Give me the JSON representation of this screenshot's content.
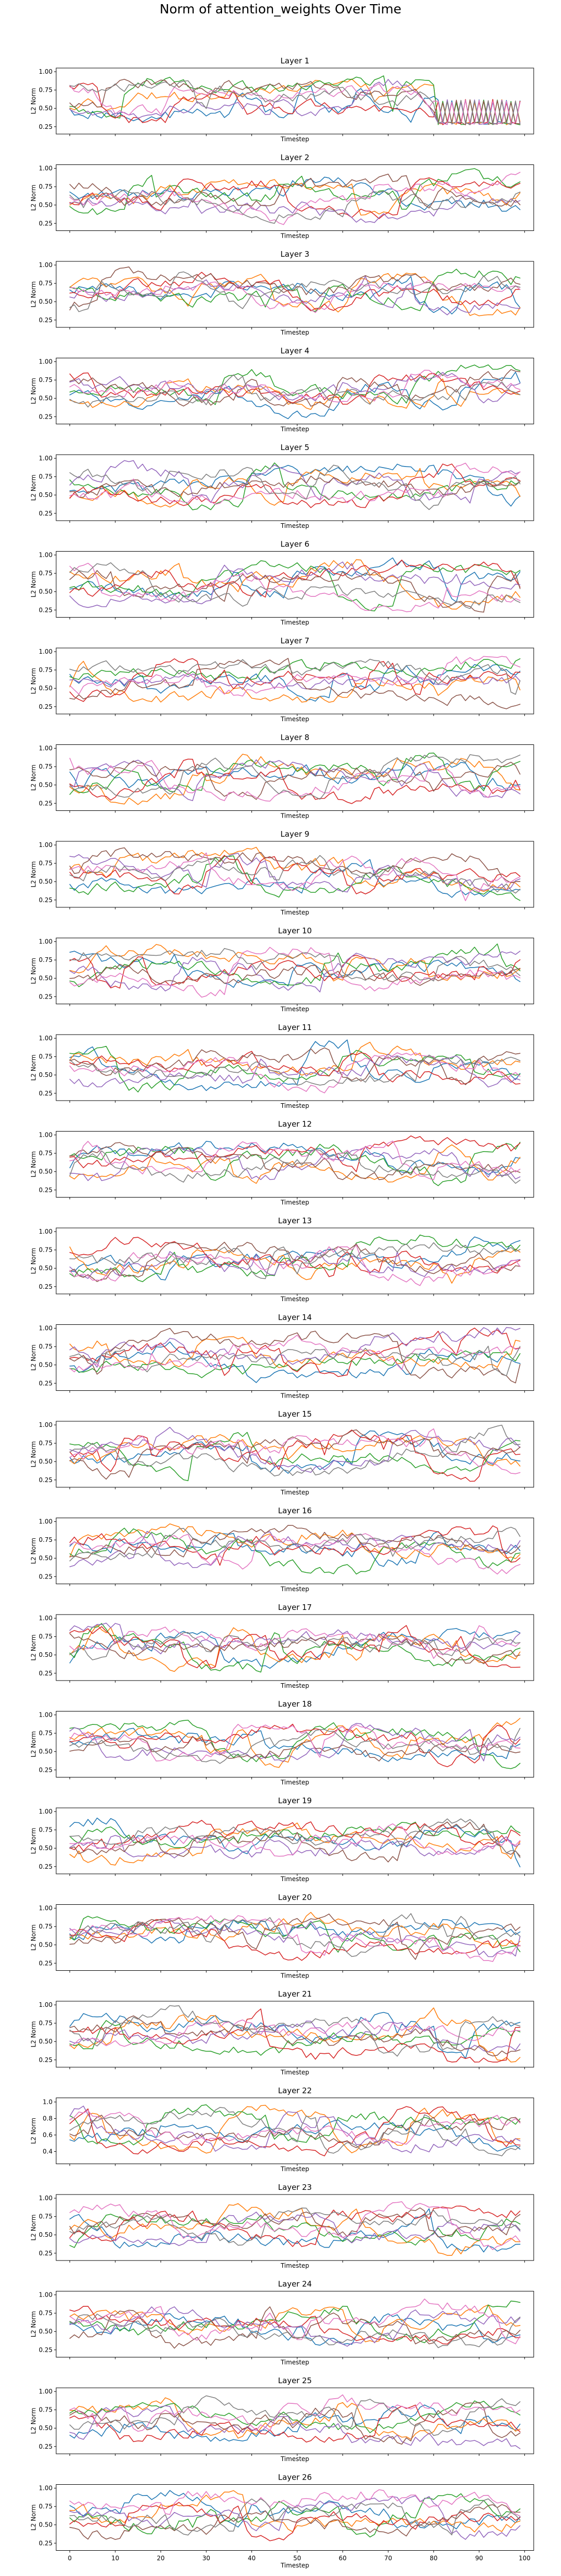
{
  "figure": {
    "title": "Norm of attention_weights Over Time"
  },
  "chart_data": {
    "type": "line",
    "xlabel": "Timestep",
    "ylabel": "L2 Norm",
    "x_range": [
      0,
      99
    ],
    "xlim": [
      -3,
      102
    ],
    "x_ticks": [
      0,
      10,
      20,
      30,
      40,
      50,
      60,
      70,
      80,
      90,
      100
    ],
    "x_tick_labels": [
      "0",
      "10",
      "20",
      "30",
      "40",
      "50",
      "60",
      "70",
      "80",
      "90",
      "100"
    ],
    "default_y_ticks": [
      0.25,
      0.5,
      0.75,
      1.0
    ],
    "default_y_tick_labels": [
      "0.25",
      "0.50",
      "0.75",
      "1.00"
    ],
    "colors": [
      "#1f77b4",
      "#ff7f0e",
      "#2ca02c",
      "#d62728",
      "#9467bd",
      "#8c564b",
      "#e377c2",
      "#7f7f7f"
    ],
    "panels": [
      {
        "title": "Layer 1",
        "ylim": [
          0.15,
          1.05
        ],
        "seed": 101
      },
      {
        "title": "Layer 2",
        "ylim": [
          0.15,
          1.05
        ],
        "seed": 102
      },
      {
        "title": "Layer 3",
        "ylim": [
          0.15,
          1.05
        ],
        "seed": 103
      },
      {
        "title": "Layer 4",
        "ylim": [
          0.15,
          1.05
        ],
        "seed": 104
      },
      {
        "title": "Layer 5",
        "ylim": [
          0.15,
          1.05
        ],
        "seed": 105
      },
      {
        "title": "Layer 6",
        "ylim": [
          0.15,
          1.05
        ],
        "seed": 106
      },
      {
        "title": "Layer 7",
        "ylim": [
          0.15,
          1.05
        ],
        "seed": 107
      },
      {
        "title": "Layer 8",
        "ylim": [
          0.15,
          1.05
        ],
        "seed": 108
      },
      {
        "title": "Layer 9",
        "ylim": [
          0.15,
          1.05
        ],
        "seed": 109
      },
      {
        "title": "Layer 10",
        "ylim": [
          0.15,
          1.05
        ],
        "seed": 110
      },
      {
        "title": "Layer 11",
        "ylim": [
          0.15,
          1.05
        ],
        "seed": 111
      },
      {
        "title": "Layer 12",
        "ylim": [
          0.15,
          1.05
        ],
        "seed": 112
      },
      {
        "title": "Layer 13",
        "ylim": [
          0.15,
          1.05
        ],
        "seed": 113
      },
      {
        "title": "Layer 14",
        "ylim": [
          0.15,
          1.05
        ],
        "seed": 114
      },
      {
        "title": "Layer 15",
        "ylim": [
          0.15,
          1.05
        ],
        "seed": 115
      },
      {
        "title": "Layer 16",
        "ylim": [
          0.15,
          1.05
        ],
        "seed": 116
      },
      {
        "title": "Layer 17",
        "ylim": [
          0.15,
          1.05
        ],
        "seed": 117
      },
      {
        "title": "Layer 18",
        "ylim": [
          0.15,
          1.05
        ],
        "seed": 118
      },
      {
        "title": "Layer 19",
        "ylim": [
          0.15,
          1.05
        ],
        "seed": 119
      },
      {
        "title": "Layer 20",
        "ylim": [
          0.15,
          1.05
        ],
        "seed": 120
      },
      {
        "title": "Layer 21",
        "ylim": [
          0.15,
          1.05
        ],
        "seed": 121
      },
      {
        "title": "Layer 22",
        "ylim": [
          0.25,
          1.05
        ],
        "y_ticks": [
          0.4,
          0.6,
          0.8,
          1.0
        ],
        "y_tick_labels": [
          "0.4",
          "0.6",
          "0.8",
          "1.0"
        ],
        "seed": 122
      },
      {
        "title": "Layer 23",
        "ylim": [
          0.15,
          1.05
        ],
        "seed": 123
      },
      {
        "title": "Layer 24",
        "ylim": [
          0.15,
          1.05
        ],
        "seed": 124
      },
      {
        "title": "Layer 25",
        "ylim": [
          0.15,
          1.05
        ],
        "seed": 125
      },
      {
        "title": "Layer 26",
        "ylim": [
          0.15,
          1.05
        ],
        "seed": 126
      }
    ]
  }
}
